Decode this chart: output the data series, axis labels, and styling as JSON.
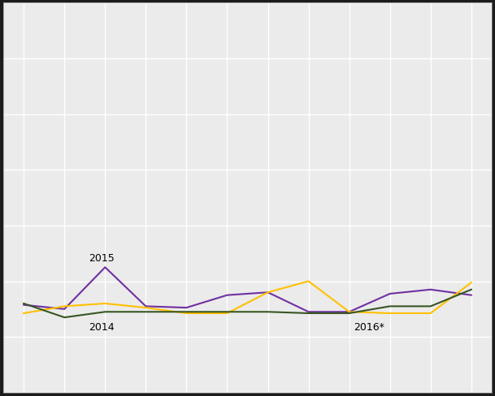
{
  "purple_vals": [
    63,
    60,
    90,
    62,
    61,
    70,
    72,
    58,
    58,
    71,
    74,
    70
  ],
  "orange_vals": [
    57,
    62,
    64,
    61,
    57,
    57,
    72,
    80,
    58,
    57,
    57,
    79
  ],
  "green_vals": [
    64,
    54,
    58,
    58,
    58,
    58,
    58,
    57,
    57,
    62,
    62,
    74
  ],
  "purple_color": "#7030A0",
  "orange_color": "#FFC000",
  "green_color": "#375623",
  "plot_bg": "#EBEBEB",
  "fig_bg": "#1C1C1C",
  "grid_color": "#FFFFFF",
  "label_2015": "2015",
  "label_2014": "2014",
  "label_2016": "2016*",
  "xlim": [
    0.5,
    12.5
  ],
  "ylim_min": 0,
  "ylim_max": 280,
  "linewidth": 1.5,
  "fontsize_label": 9,
  "n_months": 12,
  "yticks": [
    0,
    40,
    80,
    120,
    160,
    200,
    240,
    280
  ]
}
